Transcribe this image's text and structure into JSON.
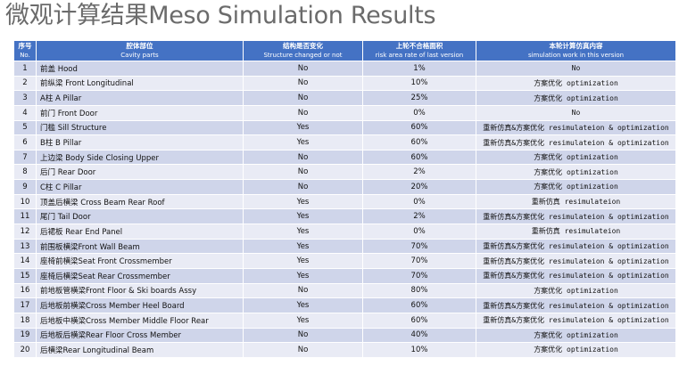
{
  "title": "微观计算结果Meso Simulation Results",
  "headers": [
    {
      "zh": "序号",
      "en": "No."
    },
    {
      "zh": "腔体部位",
      "en": "Cavity parts"
    },
    {
      "zh": "结构是否变化",
      "en": "Structure changed or not"
    },
    {
      "zh": "上轮不合格面积",
      "en": "risk area rate of last version"
    },
    {
      "zh": "本轮计算仿真内容",
      "en": "simulation work in this version"
    }
  ],
  "rows": [
    {
      "no": "1",
      "part": "前盖 Hood",
      "changed": "No",
      "rate": "1%",
      "work": "No"
    },
    {
      "no": "2",
      "part": "前纵梁 Front Longitudinal",
      "changed": "No",
      "rate": "10%",
      "work": "方案优化 optimization"
    },
    {
      "no": "3",
      "part": "A柱 A Pillar",
      "changed": "No",
      "rate": "25%",
      "work": "方案优化 optimization"
    },
    {
      "no": "4",
      "part": "前门 Front Door",
      "changed": "No",
      "rate": "0%",
      "work": "No"
    },
    {
      "no": "5",
      "part": "门槛 Sill Structure",
      "changed": "Yes",
      "rate": "60%",
      "work": "重新仿真&方案优化 resimulateion & optimization"
    },
    {
      "no": "6",
      "part": "B柱 B Pillar",
      "changed": "Yes",
      "rate": "60%",
      "work": "重新仿真&方案优化 resimulateion & optimization"
    },
    {
      "no": "7",
      "part": "上边梁 Body Side Closing Upper",
      "changed": "No",
      "rate": "60%",
      "work": "方案优化 optimization"
    },
    {
      "no": "8",
      "part": "后门 Rear Door",
      "changed": "No",
      "rate": "2%",
      "work": "方案优化 optimization"
    },
    {
      "no": "9",
      "part": "C柱 C Pillar",
      "changed": "No",
      "rate": "20%",
      "work": "方案优化 optimization"
    },
    {
      "no": "10",
      "part": "顶盖后横梁 Cross Beam Rear Roof",
      "changed": "Yes",
      "rate": "0%",
      "work": "重新仿真 resimulateion"
    },
    {
      "no": "11",
      "part": "尾门 Tail Door",
      "changed": "Yes",
      "rate": "2%",
      "work": "重新仿真&方案优化 resimulateion & optimization"
    },
    {
      "no": "12",
      "part": "后裙板 Rear End Panel",
      "changed": "Yes",
      "rate": "0%",
      "work": "重新仿真 resimulateion"
    },
    {
      "no": "13",
      "part": "前围板横梁Front Wall Beam",
      "changed": "Yes",
      "rate": "70%",
      "work": "重新仿真&方案优化 resimulateion & optimization"
    },
    {
      "no": "14",
      "part": "座椅前横梁Seat Front Crossmember",
      "changed": "Yes",
      "rate": "70%",
      "work": "重新仿真&方案优化 resimulateion & optimization"
    },
    {
      "no": "15",
      "part": "座椅后横梁Seat Rear Crossmember",
      "changed": "Yes",
      "rate": "70%",
      "work": "重新仿真&方案优化 resimulateion & optimization"
    },
    {
      "no": "16",
      "part": "前地板管横梁Front Floor & Ski boards Assy",
      "changed": "No",
      "rate": "80%",
      "work": "方案优化 optimization"
    },
    {
      "no": "17",
      "part": "后地板前横梁Cross Member Heel Board",
      "changed": "Yes",
      "rate": "60%",
      "work": "重新仿真&方案优化 resimulateion & optimization"
    },
    {
      "no": "18",
      "part": "后地板中横梁Cross Member Middle Floor Rear",
      "changed": "Yes",
      "rate": "60%",
      "work": "重新仿真&方案优化 resimulateion & optimization"
    },
    {
      "no": "19",
      "part": "后地板后横梁Rear Floor Cross Member",
      "changed": "No",
      "rate": "40%",
      "work": "方案优化 optimization"
    },
    {
      "no": "20",
      "part": "后横梁Rear Longitudinal Beam",
      "changed": "No",
      "rate": "10%",
      "work": "方案优化 optimization"
    }
  ]
}
